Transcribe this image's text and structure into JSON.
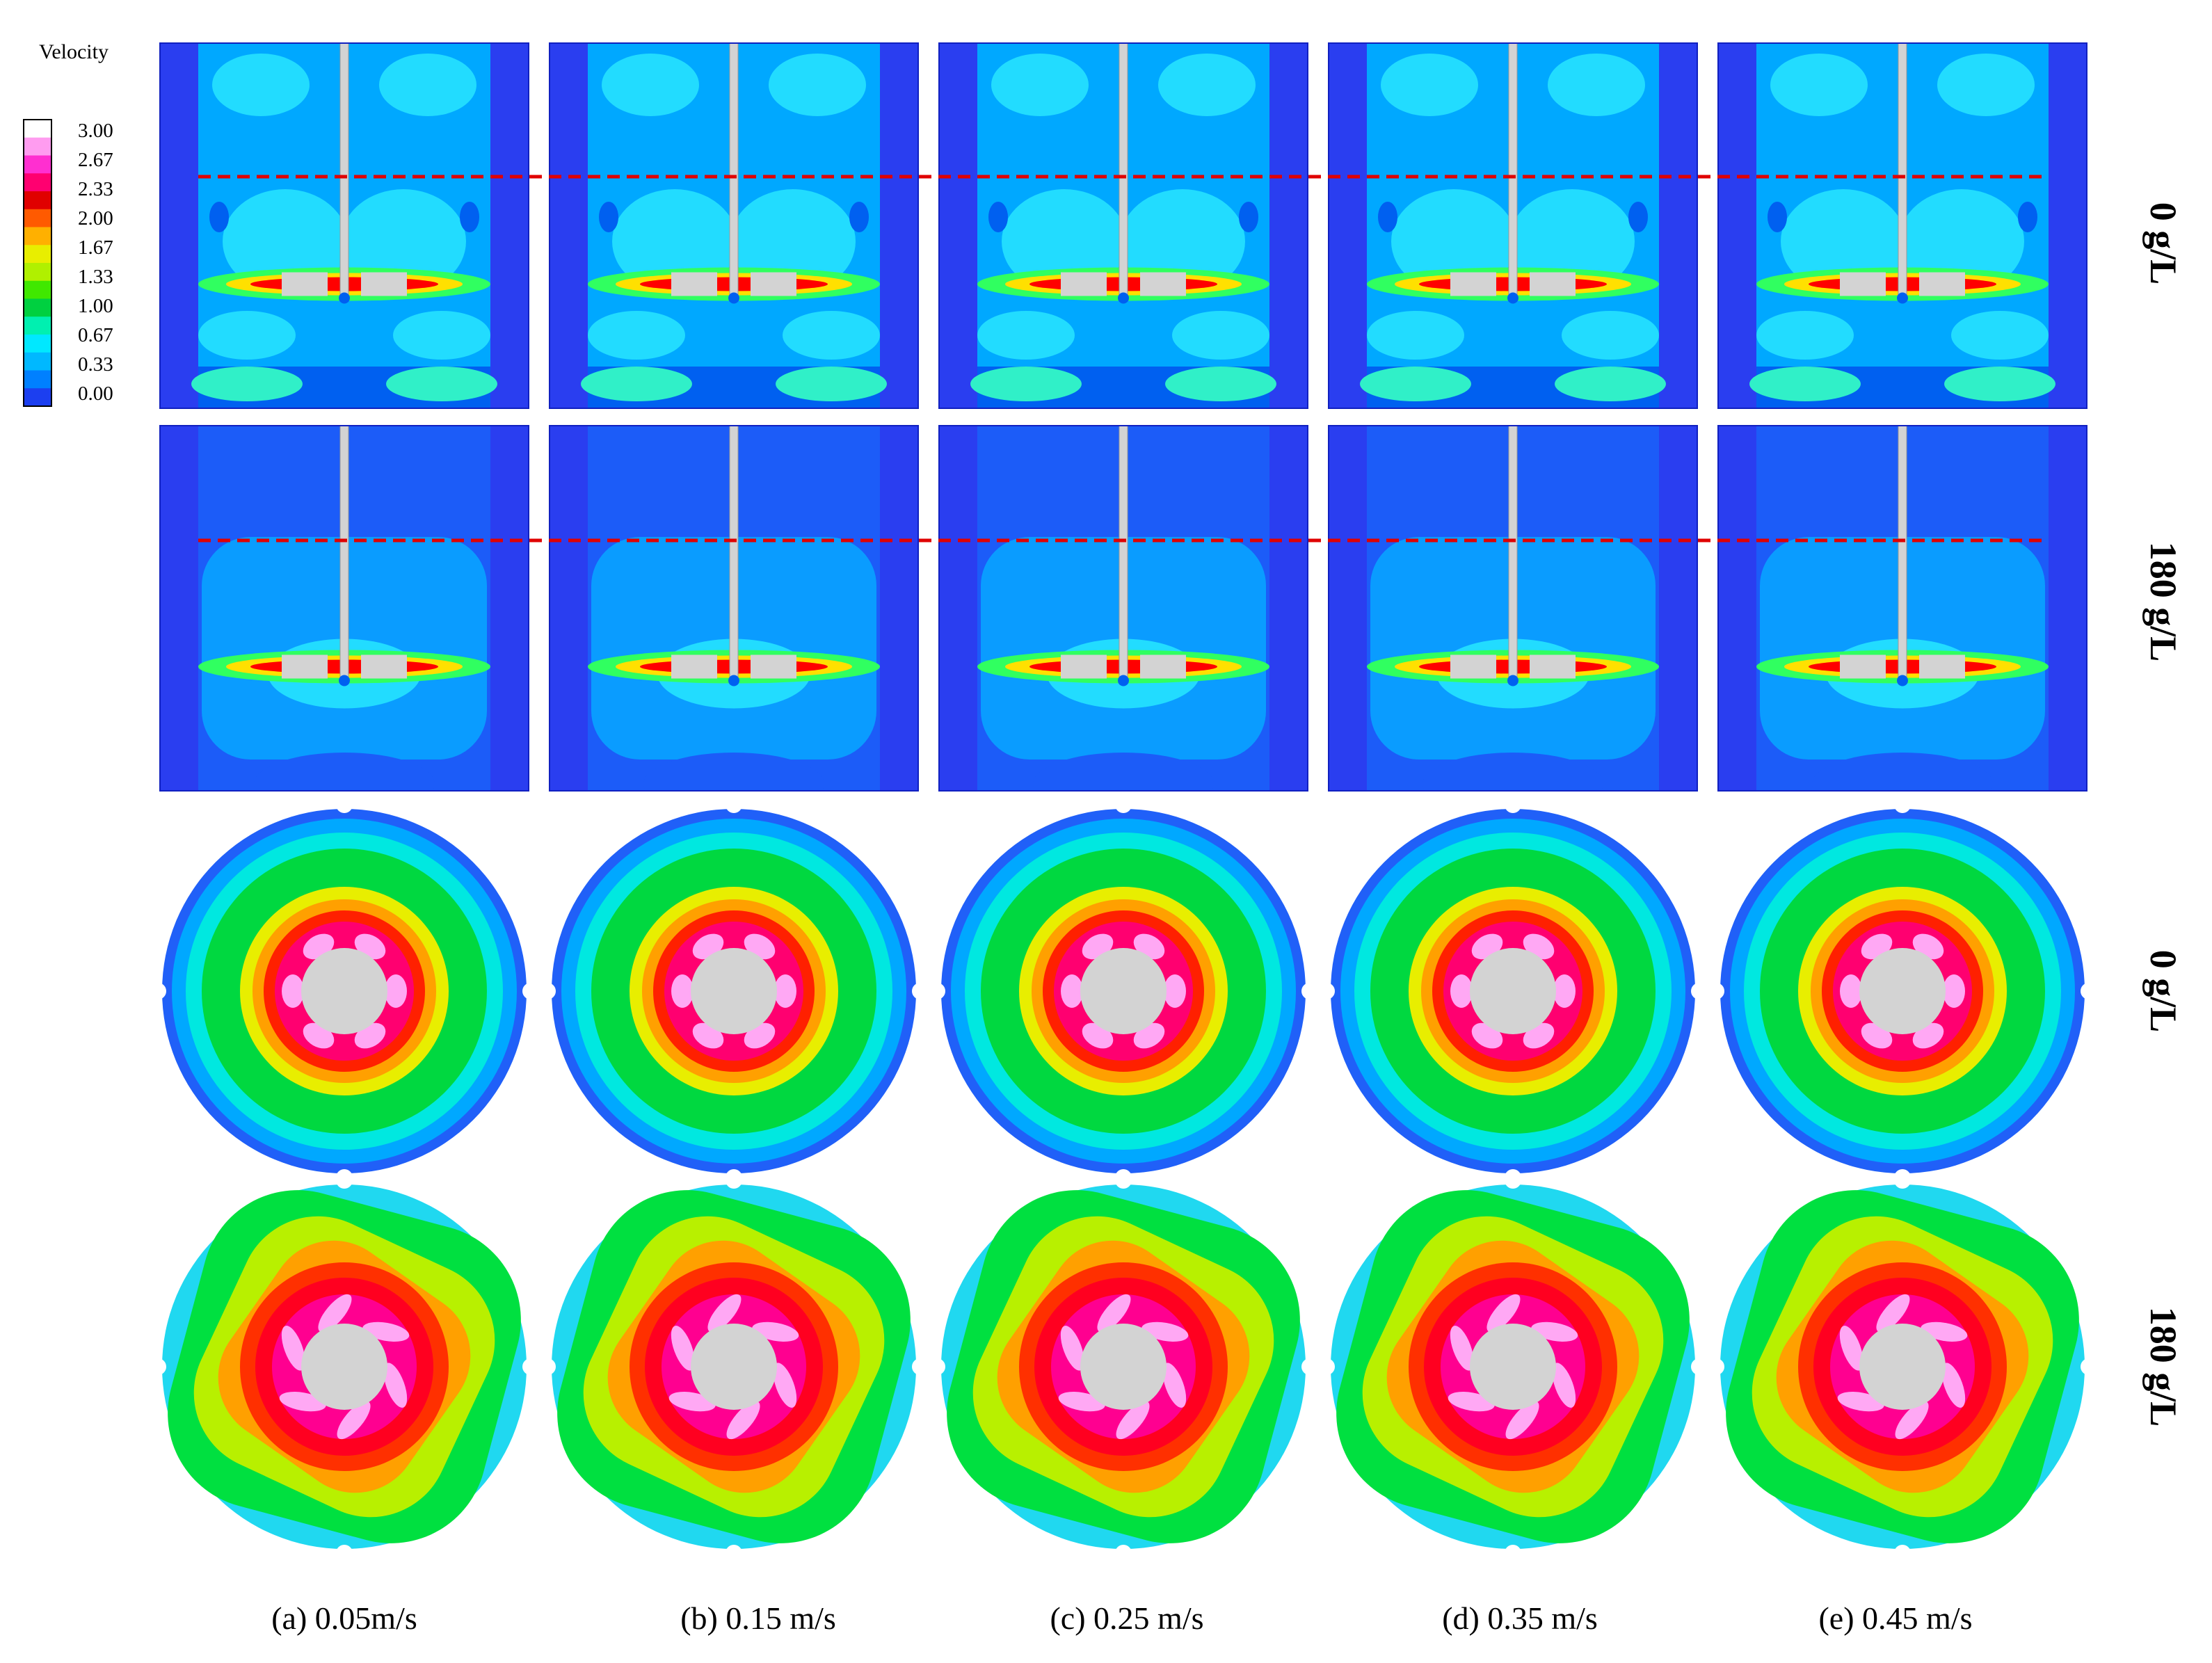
{
  "legend": {
    "title": "Velocity",
    "ticks": [
      "3.00",
      "2.67",
      "2.33",
      "2.00",
      "1.67",
      "1.33",
      "1.00",
      "0.67",
      "0.33",
      "0.00"
    ],
    "colors": [
      "#ffffff",
      "#ff9cf0",
      "#ff2fd0",
      "#ff0070",
      "#e00000",
      "#ff5a00",
      "#ffb000",
      "#e8ee00",
      "#b0f000",
      "#40e800",
      "#00d040",
      "#00f0b0",
      "#00e8ff",
      "#00b8ff",
      "#0080ff",
      "#1c3ff0"
    ]
  },
  "row_labels": [
    "0 g/L",
    "180 g/L",
    "0 g/L",
    "180 g/L"
  ],
  "column_captions": [
    "(a) 0.05m/s",
    "(b) 0.15 m/s",
    "(c) 0.25 m/s",
    "(d) 0.35 m/s",
    "(e) 0.45 m/s"
  ],
  "colors": {
    "tank_wall": "#2a3ef0",
    "deep_blue": "#1c5cf8",
    "light_cyan": "#22dcff",
    "shaft_grey": "#d3d3d3",
    "dashed_line": "#e00000"
  }
}
